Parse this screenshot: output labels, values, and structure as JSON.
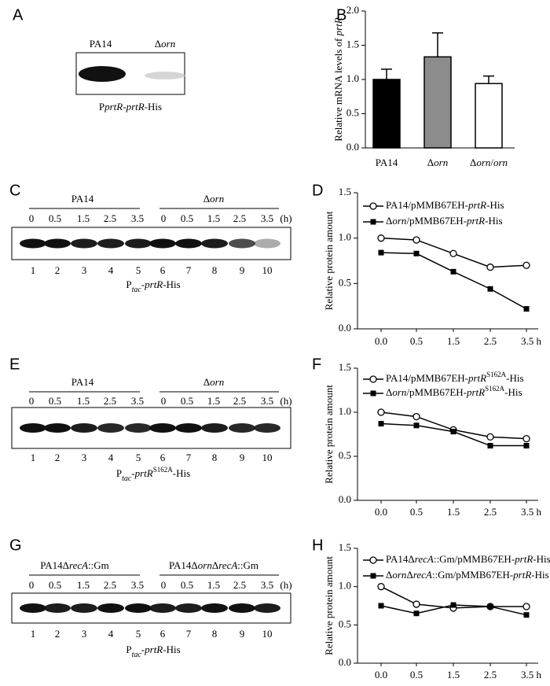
{
  "panel_letters": [
    "A",
    "B",
    "C",
    "D",
    "E",
    "F",
    "G",
    "H"
  ],
  "blot_a": {
    "lanes": [
      "PA14",
      [
        {
          "text": "Δ"
        },
        {
          "text": "orn",
          "style": "italic"
        }
      ]
    ],
    "caption": [
      {
        "text": "P"
      },
      {
        "text": "prtR",
        "style": "italic"
      },
      {
        "text": "-"
      },
      {
        "text": "prtR",
        "style": "italic"
      },
      {
        "text": "-His"
      }
    ]
  },
  "blots": [
    {
      "groups": [
        {
          "label": "PA14",
          "times": [
            "0",
            "0.5",
            "1.5",
            "2.5",
            "3.5"
          ]
        },
        {
          "label": [
            {
              "text": "Δ"
            },
            {
              "text": "orn",
              "style": "italic"
            }
          ],
          "times": [
            "0",
            "0.5",
            "1.5",
            "2.5",
            "3.5"
          ]
        }
      ],
      "unit": "(h)",
      "lanes": [
        "1",
        "2",
        "3",
        "4",
        "5",
        "6",
        "7",
        "8",
        "9",
        "10"
      ],
      "caption": [
        {
          "text": "P"
        },
        {
          "text": "tac",
          "style": "italic sub"
        },
        {
          "text": "-"
        },
        {
          "text": "prtR",
          "style": "italic"
        },
        {
          "text": "-His"
        }
      ]
    },
    {
      "groups": [
        {
          "label": "PA14",
          "times": [
            "0",
            "0.5",
            "1.5",
            "2.5",
            "3.5"
          ]
        },
        {
          "label": [
            {
              "text": "Δ"
            },
            {
              "text": "orn",
              "style": "italic"
            }
          ],
          "times": [
            "0",
            "0.5",
            "1.5",
            "2.5",
            "3.5"
          ]
        }
      ],
      "unit": "(h)",
      "lanes": [
        "1",
        "2",
        "3",
        "4",
        "5",
        "6",
        "7",
        "8",
        "9",
        "10"
      ],
      "caption": [
        {
          "text": "P"
        },
        {
          "text": "tac",
          "style": "italic sub"
        },
        {
          "text": "-"
        },
        {
          "text": "prtR",
          "style": "italic"
        },
        {
          "text": "S162A",
          "style": "sup"
        },
        {
          "text": "-His"
        }
      ]
    },
    {
      "groups": [
        {
          "label": [
            {
              "text": "PA14Δ"
            },
            {
              "text": "recA",
              "style": "italic"
            },
            {
              "text": "::Gm"
            }
          ],
          "times": [
            "0",
            "0.5",
            "1.5",
            "2.5",
            "3.5"
          ]
        },
        {
          "label": [
            {
              "text": "PA14Δ"
            },
            {
              "text": "orn",
              "style": "italic"
            },
            {
              "text": "Δ"
            },
            {
              "text": "recA",
              "style": "italic"
            },
            {
              "text": "::Gm"
            }
          ],
          "times": [
            "0",
            "0.5",
            "1.5",
            "2.5",
            "3.5"
          ]
        }
      ],
      "unit": "(h)",
      "lanes": [
        "1",
        "2",
        "3",
        "4",
        "5",
        "6",
        "7",
        "8",
        "9",
        "10"
      ],
      "caption": [
        {
          "text": "P"
        },
        {
          "text": "tac",
          "style": "italic sub"
        },
        {
          "text": "-"
        },
        {
          "text": "prtR",
          "style": "italic"
        },
        {
          "text": "-His"
        }
      ]
    }
  ],
  "chart_data": [
    {
      "type": "bar",
      "categories": [
        "PA14",
        [
          {
            "text": "Δ"
          },
          {
            "text": "orn",
            "style": "italic"
          }
        ],
        [
          {
            "text": "Δ"
          },
          {
            "text": "orn",
            "style": "italic"
          },
          {
            "text": "/"
          },
          {
            "text": "orn",
            "style": "italic"
          }
        ]
      ],
      "values": [
        1.0,
        1.33,
        0.94
      ],
      "errors": [
        0.15,
        0.35,
        0.11
      ],
      "colors": [
        "#000000",
        "#8c8c8c",
        "#ffffff"
      ],
      "ylabel": [
        {
          "text": "Relative mRNA levels of "
        },
        {
          "text": "prtR",
          "style": "italic"
        }
      ],
      "ylim": [
        0,
        2
      ],
      "yticks": [
        {
          "value": 0,
          "label": "0.0"
        },
        {
          "value": 0.5,
          "label": "0.5"
        },
        {
          "value": 1,
          "label": "1.0"
        },
        {
          "value": 1.5,
          "label": "1.5"
        },
        {
          "value": 2,
          "label": "2.0"
        }
      ]
    },
    {
      "type": "line",
      "categories": [
        "0.0",
        "0.5",
        "1.5",
        "2.5",
        "3.5 h"
      ],
      "ylabel": "Relative protein amount",
      "legend": "upper left",
      "ylim": [
        0,
        1.5
      ],
      "yticks": [
        {
          "value": 0,
          "label": "0.0"
        },
        {
          "value": 0.5,
          "label": "0.5"
        },
        {
          "value": 1,
          "label": "1.0"
        },
        {
          "value": 1.5,
          "label": "1.5"
        }
      ],
      "series": [
        {
          "name": [
            {
              "text": "PA14/pMMB67EH-"
            },
            {
              "text": "prtR",
              "style": "italic"
            },
            {
              "text": "-His"
            }
          ],
          "color": "#000000",
          "marker": "open-circle",
          "values": [
            1.0,
            0.98,
            0.83,
            0.68,
            0.7
          ]
        },
        {
          "name": [
            {
              "text": "Δ"
            },
            {
              "text": "orn",
              "style": "italic"
            },
            {
              "text": "/pMMB67EH-"
            },
            {
              "text": "prtR",
              "style": "italic"
            },
            {
              "text": "-His"
            }
          ],
          "color": "#000000",
          "marker": "filled-square",
          "values": [
            0.84,
            0.83,
            0.63,
            0.44,
            0.22
          ]
        }
      ]
    },
    {
      "type": "line",
      "categories": [
        "0.0",
        "0.5",
        "1.5",
        "2.5",
        "3.5 h"
      ],
      "ylabel": "Relative protein amount",
      "legend": "upper left",
      "ylim": [
        0,
        1.5
      ],
      "yticks": [
        {
          "value": 0,
          "label": "0.0"
        },
        {
          "value": 0.5,
          "label": "0.5"
        },
        {
          "value": 1,
          "label": "1.0"
        },
        {
          "value": 1.5,
          "label": "1.5"
        }
      ],
      "series": [
        {
          "name": [
            {
              "text": "PA14/pMMB67EH-"
            },
            {
              "text": "prtR",
              "style": "italic"
            },
            {
              "text": "S162A",
              "style": "sup"
            },
            {
              "text": "-His"
            }
          ],
          "color": "#000000",
          "marker": "open-circle",
          "values": [
            1.0,
            0.95,
            0.8,
            0.72,
            0.7
          ]
        },
        {
          "name": [
            {
              "text": "Δ"
            },
            {
              "text": "orn",
              "style": "italic"
            },
            {
              "text": "/pMMB67EH-"
            },
            {
              "text": "prtR",
              "style": "italic"
            },
            {
              "text": "S162A",
              "style": "sup"
            },
            {
              "text": "-His"
            }
          ],
          "color": "#000000",
          "marker": "filled-square",
          "values": [
            0.87,
            0.85,
            0.78,
            0.62,
            0.62
          ]
        }
      ]
    },
    {
      "type": "line",
      "categories": [
        "0.0",
        "0.5",
        "1.5",
        "2.5",
        "3.5 h"
      ],
      "ylabel": "Relative protein amount",
      "legend": "upper left",
      "ylim": [
        0,
        1.5
      ],
      "yticks": [
        {
          "value": 0,
          "label": "0.0"
        },
        {
          "value": 0.5,
          "label": "0.5"
        },
        {
          "value": 1,
          "label": "1.0"
        },
        {
          "value": 1.5,
          "label": "1.5"
        }
      ],
      "series": [
        {
          "name": [
            {
              "text": "PA14Δ"
            },
            {
              "text": "recA",
              "style": "italic"
            },
            {
              "text": "::Gm/pMMB67EH-"
            },
            {
              "text": "prtR",
              "style": "italic"
            },
            {
              "text": "-His"
            }
          ],
          "color": "#000000",
          "marker": "open-circle",
          "values": [
            1.0,
            0.77,
            0.72,
            0.74,
            0.74
          ]
        },
        {
          "name": [
            {
              "text": "Δ"
            },
            {
              "text": "orn",
              "style": "italic"
            },
            {
              "text": "Δ"
            },
            {
              "text": "recA",
              "style": "italic"
            },
            {
              "text": "::Gm/pMMB67EH-"
            },
            {
              "text": "prtR",
              "style": "italic"
            },
            {
              "text": "-His"
            }
          ],
          "color": "#000000",
          "marker": "filled-square",
          "values": [
            0.75,
            0.65,
            0.76,
            0.74,
            0.63
          ]
        }
      ]
    }
  ]
}
